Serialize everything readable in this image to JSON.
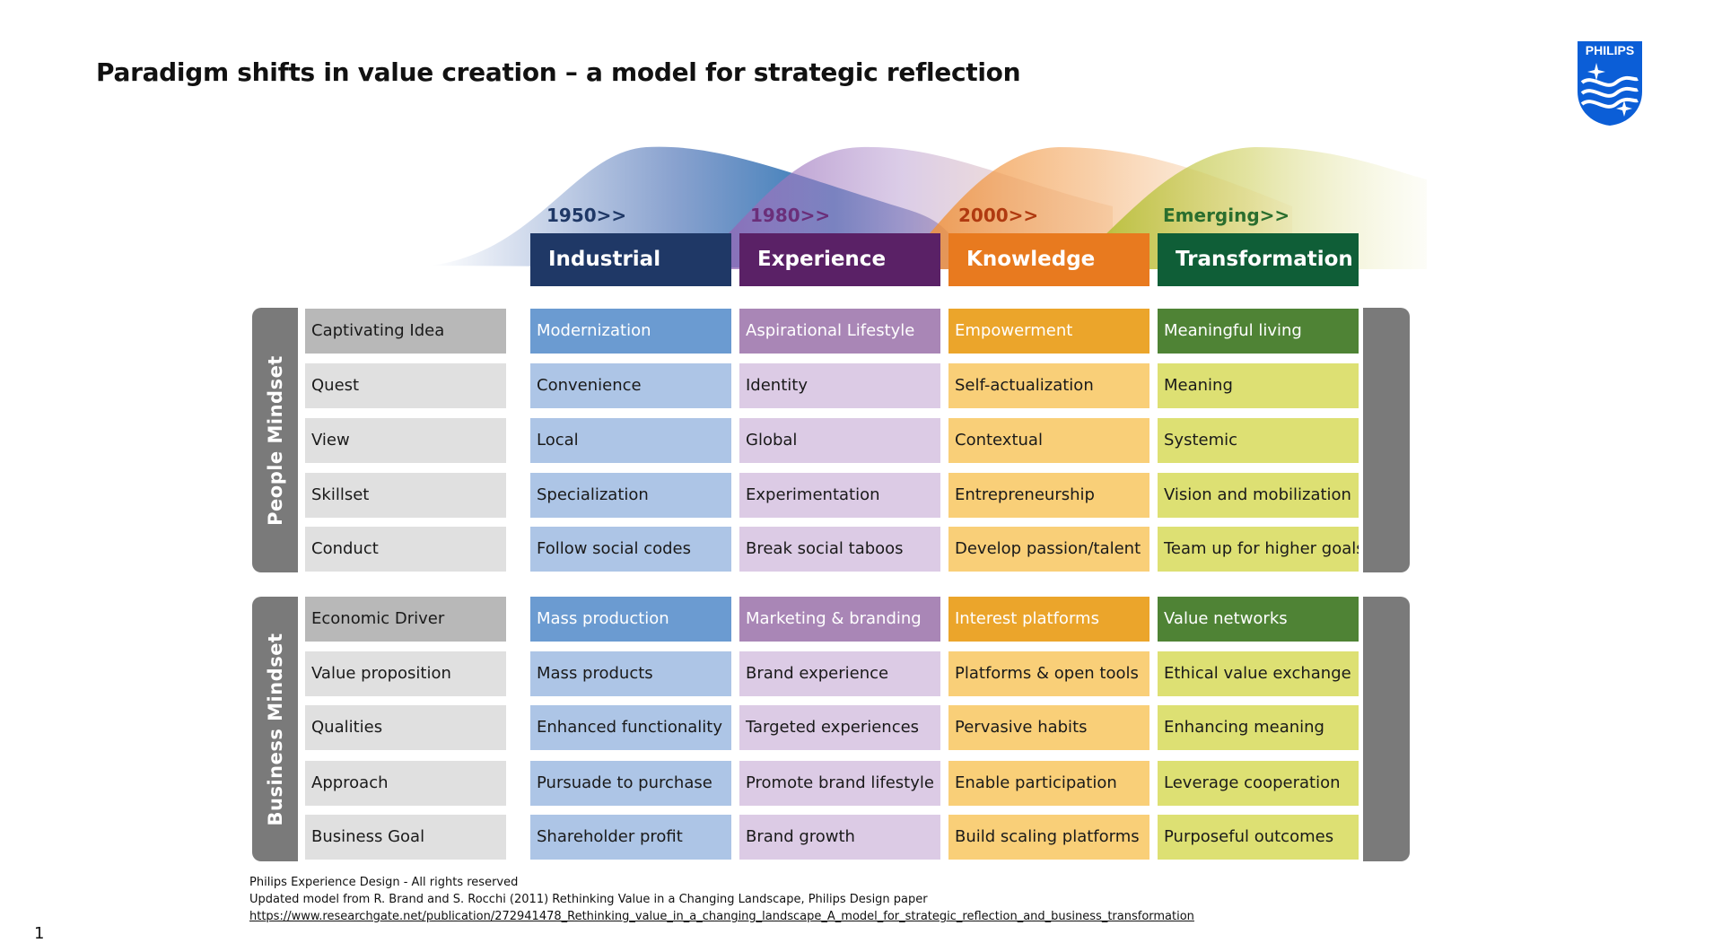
{
  "title": "Paradigm shifts in value creation – a model for strategic reflection",
  "logo": {
    "text": "PHILIPS",
    "color": "#0b5ed7"
  },
  "eras": [
    {
      "year": "1950>>",
      "name": "Industrial",
      "color": "#1f3866",
      "year_color": "#1f3866",
      "header_cell": "#6b9bd1",
      "cell": "#adc5e6"
    },
    {
      "year": "1980>>",
      "name": "Experience",
      "color": "#5a2166",
      "year_color": "#6b2f7a",
      "header_cell": "#a986b6",
      "cell": "#dccbe5"
    },
    {
      "year": "2000>>",
      "name": "Knowledge",
      "color": "#e87a1f",
      "year_color": "#b03a10",
      "header_cell": "#eba52b",
      "cell": "#f9cf78"
    },
    {
      "year": "Emerging>>",
      "name": "Transformation",
      "color": "#0f5e37",
      "year_color": "#2a6e2e",
      "header_cell": "#4f8335",
      "cell": "#dde073"
    }
  ],
  "people_mindset": {
    "label": "People  Mindset",
    "rows": [
      {
        "label": "Captivating Idea",
        "values": [
          "Modernization",
          "Aspirational Lifestyle",
          "Empowerment",
          "Meaningful living"
        ]
      },
      {
        "label": "Quest",
        "values": [
          "Convenience",
          "Identity",
          "Self-actualization",
          "Meaning"
        ]
      },
      {
        "label": "View",
        "values": [
          "Local",
          "Global",
          "Contextual",
          "Systemic"
        ]
      },
      {
        "label": "Skillset",
        "values": [
          "Specialization",
          "Experimentation",
          "Entrepreneurship",
          "Vision and mobilization"
        ]
      },
      {
        "label": "Conduct",
        "values": [
          "Follow social codes",
          "Break social taboos",
          "Develop passion/talent",
          "Team up for higher goals"
        ]
      }
    ]
  },
  "business_mindset": {
    "label": "Business  Mindset",
    "rows": [
      {
        "label": "Economic Driver",
        "values": [
          "Mass production",
          "Marketing & branding",
          "Interest platforms",
          "Value networks"
        ]
      },
      {
        "label": "Value proposition",
        "values": [
          "Mass products",
          "Brand experience",
          "Platforms & open tools",
          "Ethical value exchange"
        ]
      },
      {
        "label": "Qualities",
        "values": [
          "Enhanced functionality",
          "Targeted experiences",
          "Pervasive habits",
          "Enhancing meaning"
        ]
      },
      {
        "label": "Approach",
        "values": [
          "Pursuade to purchase",
          "Promote brand lifestyle",
          "Enable participation",
          "Leverage cooperation"
        ]
      },
      {
        "label": "Business Goal",
        "values": [
          "Shareholder profit",
          "Brand growth",
          "Build scaling platforms",
          "Purposeful outcomes"
        ]
      }
    ]
  },
  "footer": {
    "line1": "Philips Experience Design - All rights reserved",
    "line2": "Updated model from R. Brand and S. Rocchi (2011) Rethinking Value in a Changing Landscape, Philips Design paper",
    "link": "https://www.researchgate.net/publication/272941478_Rethinking_value_in_a_changing_landscape_A_model_for_strategic_reflection_and_business_transformation"
  },
  "page_number": "1"
}
